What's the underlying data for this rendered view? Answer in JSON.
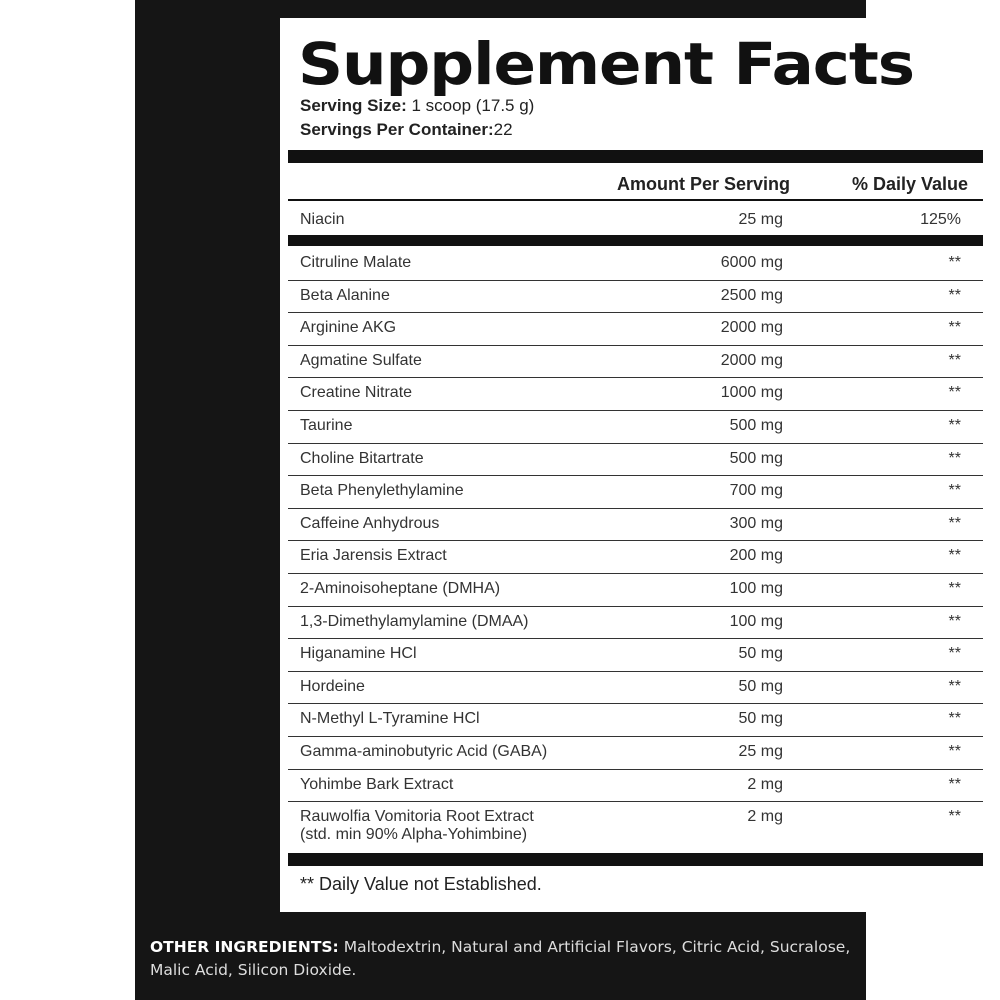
{
  "title": "Supplement Facts",
  "serving_size_label": "Serving Size:",
  "serving_size_value": " 1 scoop (17.5 g)",
  "servings_per_container_label": "Servings Per Container:",
  "servings_per_container_value": "22",
  "headers": {
    "amount": "Amount Per Serving",
    "dv": "% Daily Value"
  },
  "niacin": {
    "name": "Niacin",
    "amount": "25 mg",
    "dv": "125%"
  },
  "ingredients": [
    {
      "name": "Citruline Malate",
      "amount": "6000 mg",
      "dv": "**"
    },
    {
      "name": "Beta Alanine",
      "amount": "2500 mg",
      "dv": "**"
    },
    {
      "name": "Arginine AKG",
      "amount": "2000 mg",
      "dv": "**"
    },
    {
      "name": "Agmatine Sulfate",
      "amount": "2000 mg",
      "dv": "**"
    },
    {
      "name": "Creatine Nitrate",
      "amount": "1000 mg",
      "dv": "**"
    },
    {
      "name": "Taurine",
      "amount": "500 mg",
      "dv": "**"
    },
    {
      "name": "Choline Bitartrate",
      "amount": "500 mg",
      "dv": "**"
    },
    {
      "name": "Beta Phenylethylamine",
      "amount": "700 mg",
      "dv": "**"
    },
    {
      "name": "Caffeine Anhydrous",
      "amount": "300 mg",
      "dv": "**"
    },
    {
      "name": "Eria Jarensis Extract",
      "amount": "200 mg",
      "dv": "**"
    },
    {
      "name": "2-Aminoisoheptane (DMHA)",
      "amount": "100 mg",
      "dv": "**"
    },
    {
      "name": "1,3-Dimethylamylamine (DMAA)",
      "amount": "100 mg",
      "dv": "**"
    },
    {
      "name": "Higanamine HCl",
      "amount": "50 mg",
      "dv": "**"
    },
    {
      "name": "Hordeine",
      "amount": "50 mg",
      "dv": "**"
    },
    {
      "name": "N-Methyl L-Tyramine HCl",
      "amount": "50 mg",
      "dv": "**"
    },
    {
      "name": "Gamma-aminobutyric Acid (GABA)",
      "amount": "25 mg",
      "dv": "**"
    },
    {
      "name": "Yohimbe Bark Extract",
      "amount": "2 mg",
      "dv": "**"
    }
  ],
  "last_ingredient": {
    "name": "Rauwolfia Vomitoria Root Extract",
    "subname": "(std. min 90% Alpha-Yohimbine)",
    "amount": "2 mg",
    "dv": "**"
  },
  "footnote": "** Daily Value not Established.",
  "other_label": "OTHER INGREDIENTS:",
  "other_value": " Maltodextrin, Natural and Artificial Flavors, Citric Acid, Sucralose, Malic Acid, Silicon Dioxide."
}
